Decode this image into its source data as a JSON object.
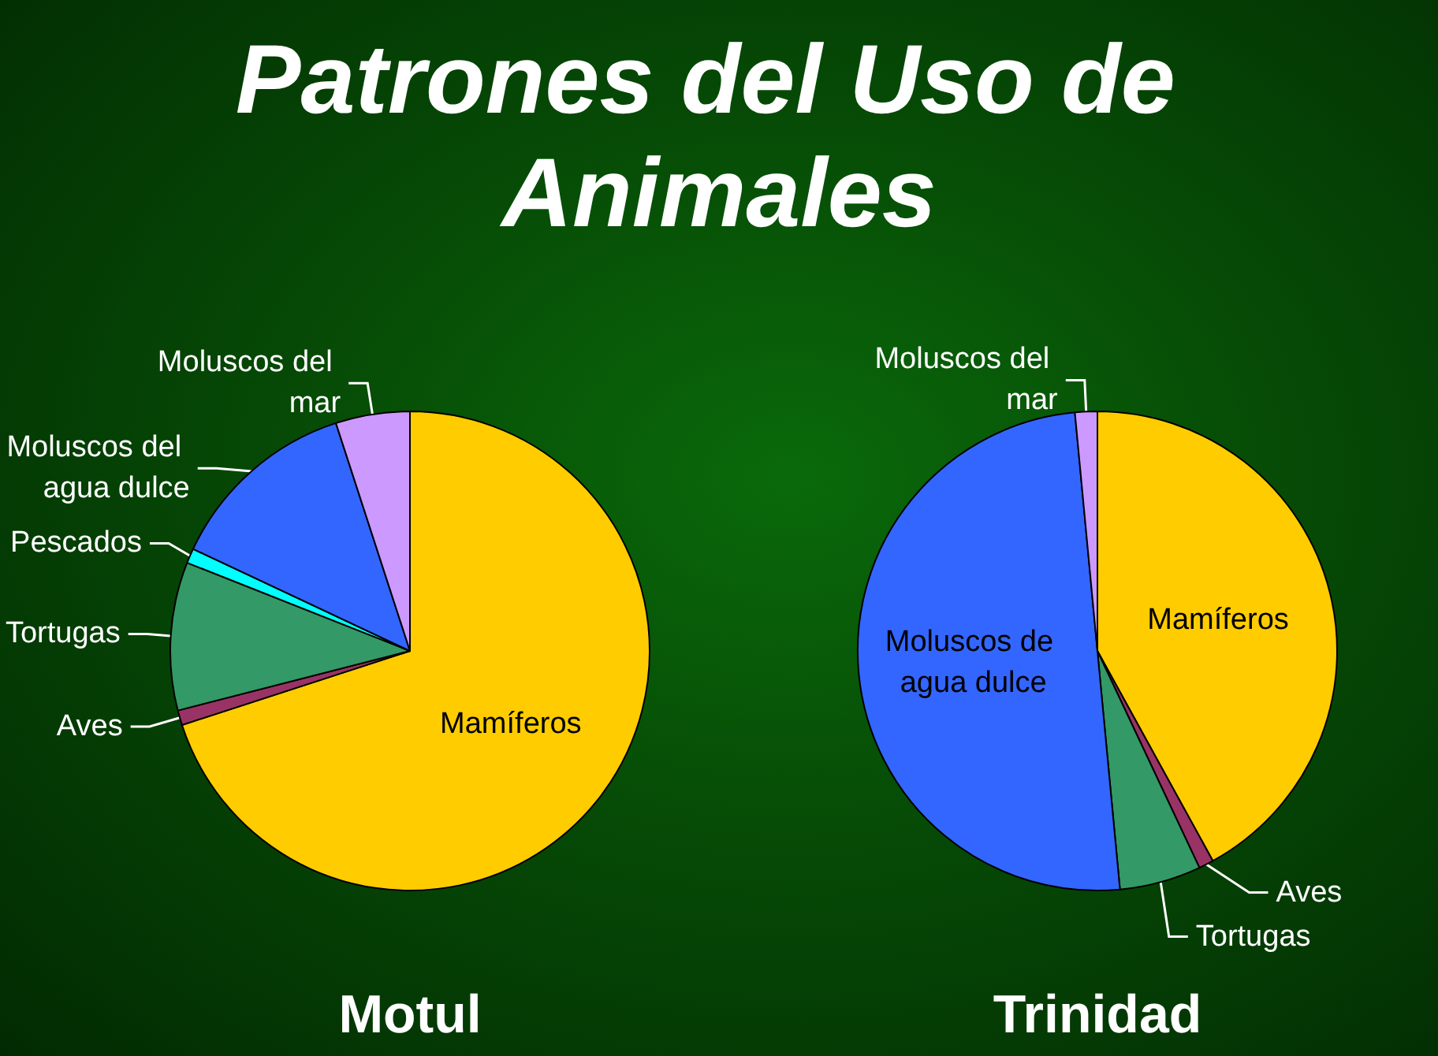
{
  "chart_data": [
    {
      "type": "other",
      "title": "Patrones del Uso de Animales"
    },
    {
      "type": "pie",
      "title": "Motul",
      "categories": [
        "Mamíferos",
        "Aves",
        "Tortugas",
        "Pescados",
        "Moluscos del agua dulce",
        "Moluscos del mar"
      ],
      "values": [
        70,
        1,
        10,
        1,
        13,
        5
      ],
      "colors": [
        "#ffcc00",
        "#993366",
        "#339966",
        "#00ffff",
        "#3366ff",
        "#cc99ff"
      ]
    },
    {
      "type": "pie",
      "title": "Trinidad",
      "categories": [
        "Mamíferos",
        "Aves",
        "Tortugas",
        "Moluscos de agua dulce",
        "Moluscos del mar"
      ],
      "values": [
        42,
        1,
        5.5,
        50,
        1.5
      ],
      "colors": [
        "#ffcc00",
        "#993366",
        "#339966",
        "#3366ff",
        "#cc99ff"
      ]
    }
  ]
}
